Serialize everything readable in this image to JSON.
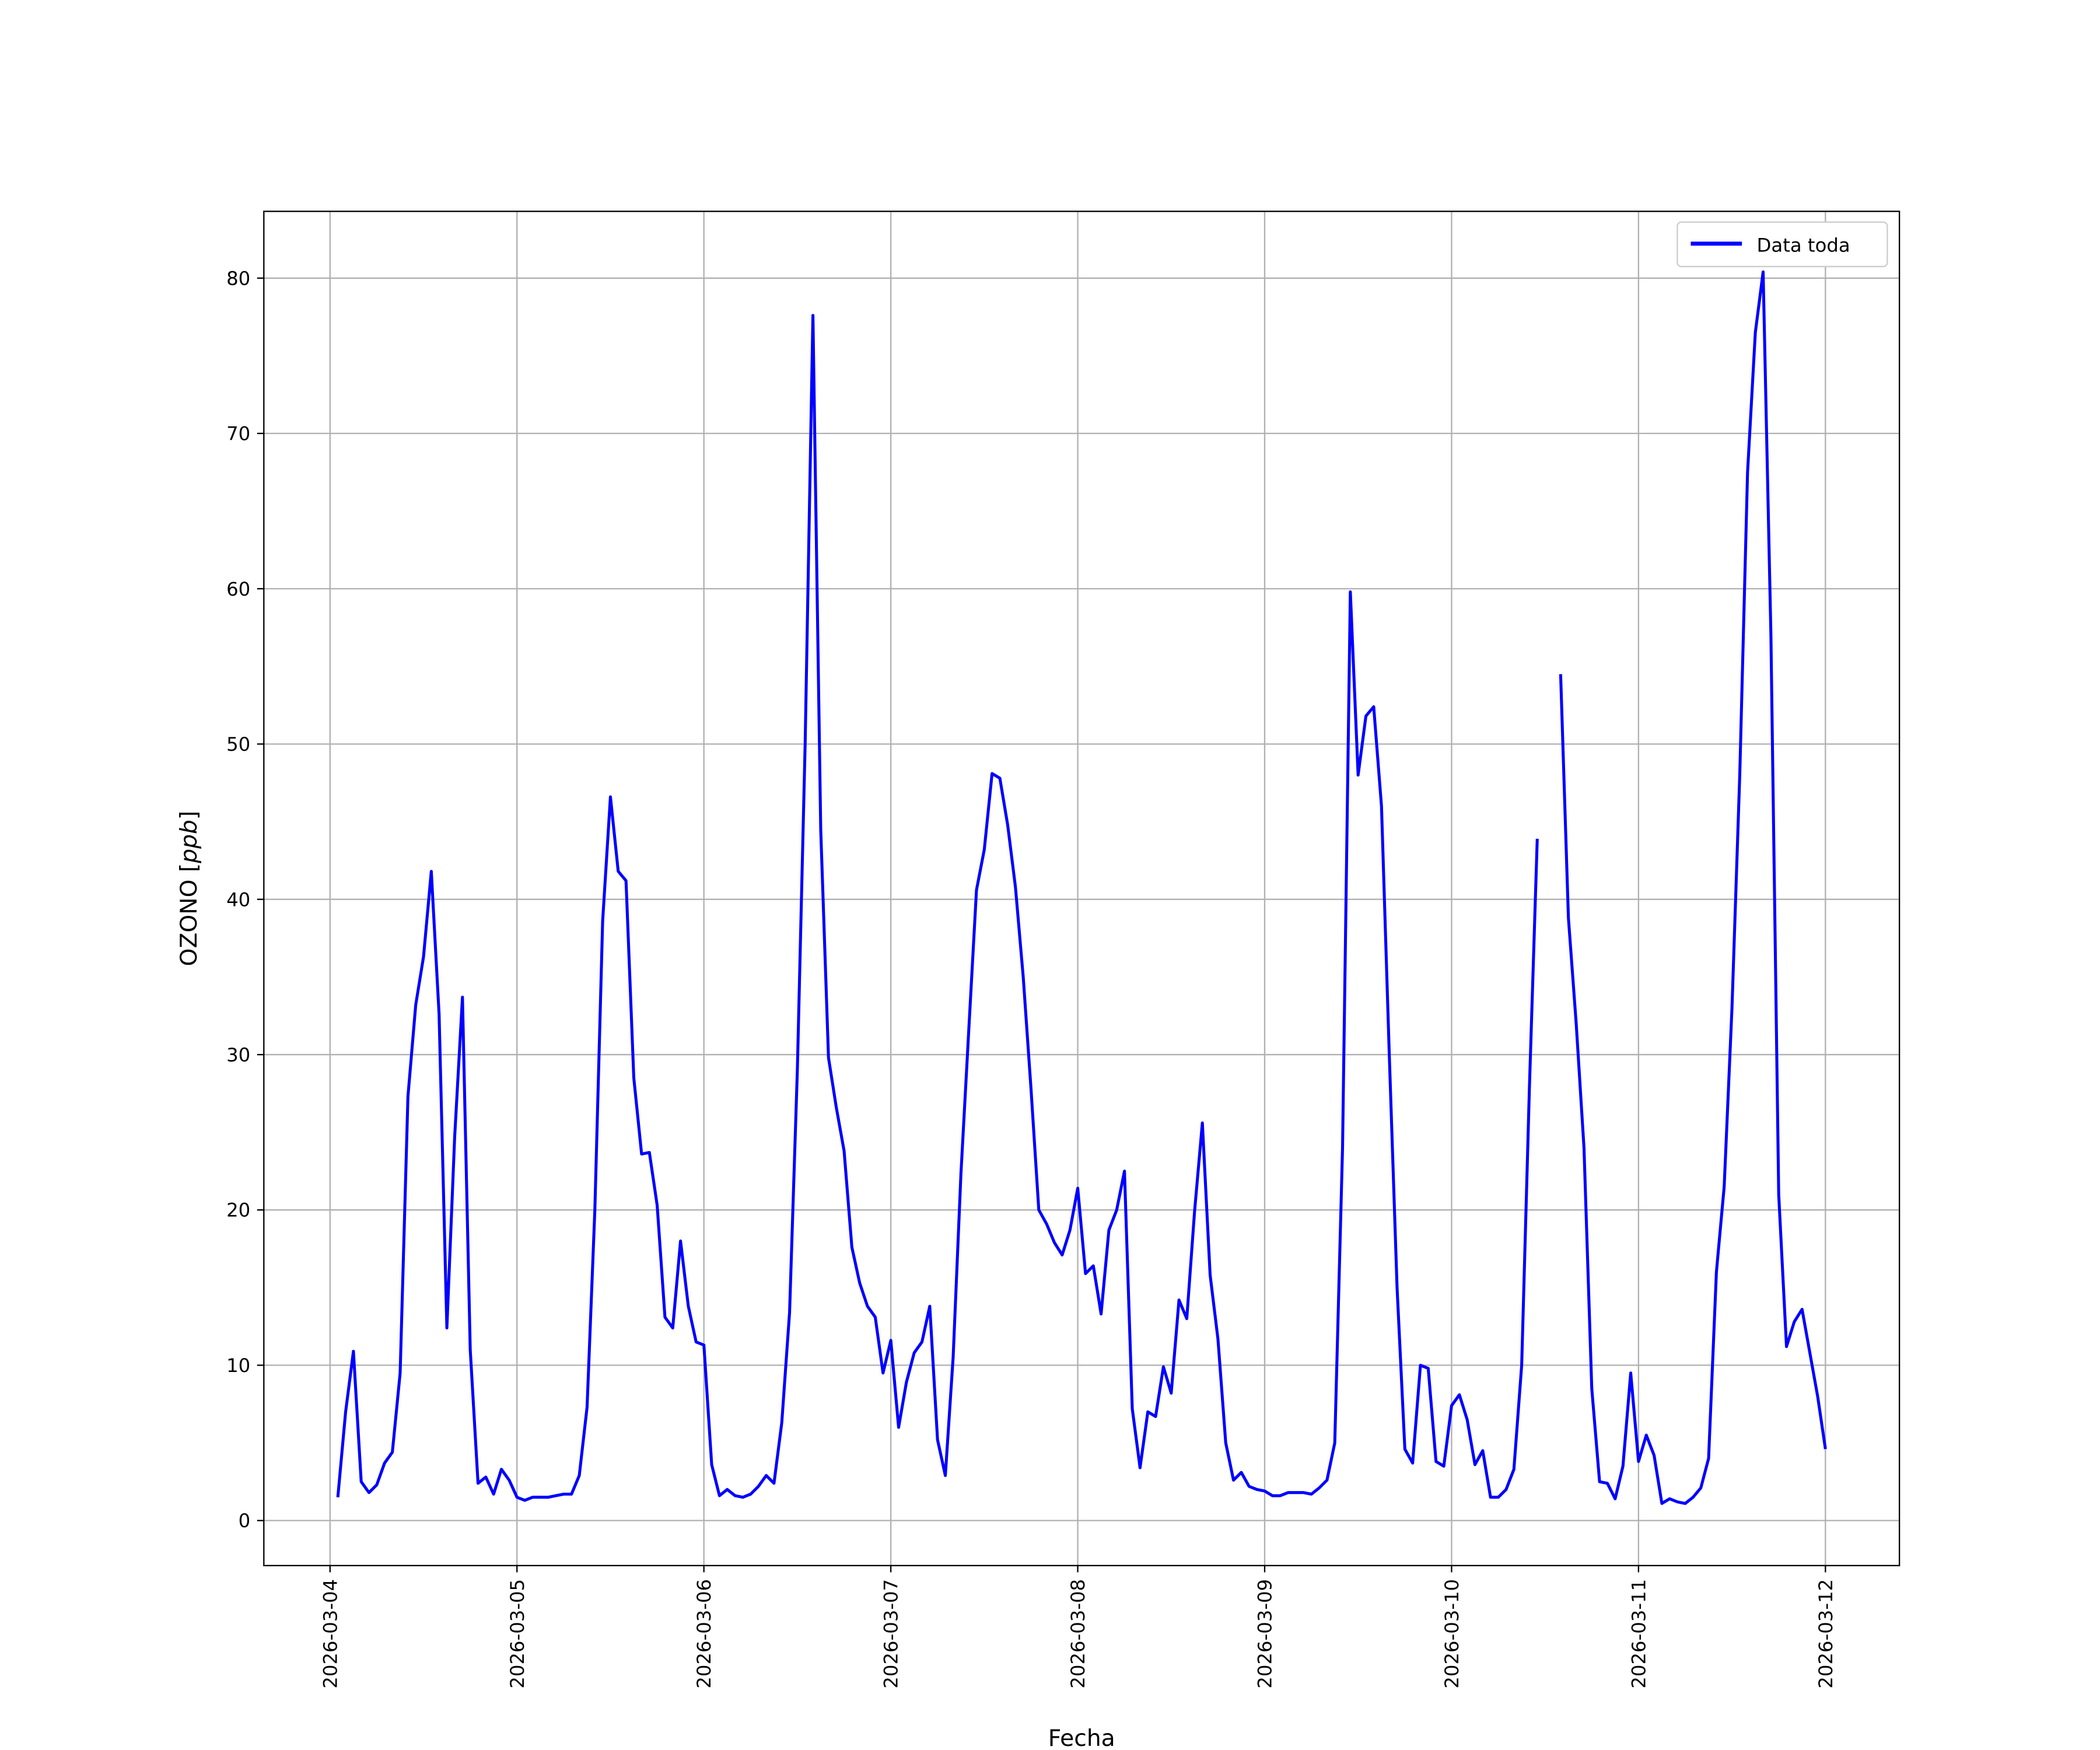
{
  "chart_data": {
    "type": "line",
    "title": "",
    "xlabel": "Fecha",
    "ylabel": "OZONO [ppb]",
    "ylabel_main": "OZONO",
    "ylabel_unit": "ppb",
    "xlim": [
      "2026-03-03 15:30",
      "2026-03-12 09:30"
    ],
    "ylim": [
      -2.9,
      84.3
    ],
    "grid": true,
    "legend": "top-right",
    "x_ticks": [
      "2026-03-04",
      "2026-03-05",
      "2026-03-06",
      "2026-03-07",
      "2026-03-08",
      "2026-03-09",
      "2026-03-10",
      "2026-03-11",
      "2026-03-12"
    ],
    "y_ticks": [
      0,
      10,
      20,
      30,
      40,
      50,
      60,
      70,
      80
    ],
    "series": [
      {
        "name": "Data toda",
        "color": "#0000ff",
        "points": [
          [
            "2026-03-04 01:00",
            1.5
          ],
          [
            "2026-03-04 02:00",
            7
          ],
          [
            "2026-03-04 03:00",
            10.9
          ],
          [
            "2026-03-04 04:00",
            2.5
          ],
          [
            "2026-03-04 05:00",
            1.8
          ],
          [
            "2026-03-04 06:00",
            2.3
          ],
          [
            "2026-03-04 07:00",
            3.7
          ],
          [
            "2026-03-04 08:00",
            4.4
          ],
          [
            "2026-03-04 09:00",
            9.5
          ],
          [
            "2026-03-04 10:00",
            27.3
          ],
          [
            "2026-03-04 11:00",
            33.2
          ],
          [
            "2026-03-04 12:00",
            36.3
          ],
          [
            "2026-03-04 13:00",
            41.8
          ],
          [
            "2026-03-04 14:00",
            32.6
          ],
          [
            "2026-03-04 15:00",
            12.4
          ],
          [
            "2026-03-04 16:00",
            24.7
          ],
          [
            "2026-03-04 17:00",
            33.7
          ],
          [
            "2026-03-04 18:00",
            11
          ],
          [
            "2026-03-04 19:00",
            2.4
          ],
          [
            "2026-03-04 20:00",
            2.8
          ],
          [
            "2026-03-04 21:00",
            1.7
          ],
          [
            "2026-03-04 22:00",
            3.3
          ],
          [
            "2026-03-04 23:00",
            2.6
          ],
          [
            "2026-03-05 00:00",
            1.5
          ],
          [
            "2026-03-05 01:00",
            1.3
          ],
          [
            "2026-03-05 02:00",
            1.5
          ],
          [
            "2026-03-05 03:00",
            1.5
          ],
          [
            "2026-03-05 04:00",
            1.5
          ],
          [
            "2026-03-05 05:00",
            1.6
          ],
          [
            "2026-03-05 06:00",
            1.7
          ],
          [
            "2026-03-05 07:00",
            1.7
          ],
          [
            "2026-03-05 08:00",
            2.9
          ],
          [
            "2026-03-05 09:00",
            7.3
          ],
          [
            "2026-03-05 10:00",
            20
          ],
          [
            "2026-03-05 11:00",
            38.6
          ],
          [
            "2026-03-05 12:00",
            46.6
          ],
          [
            "2026-03-05 13:00",
            41.8
          ],
          [
            "2026-03-05 14:00",
            41.2
          ],
          [
            "2026-03-05 15:00",
            28.5
          ],
          [
            "2026-03-05 16:00",
            23.6
          ],
          [
            "2026-03-05 17:00",
            23.7
          ],
          [
            "2026-03-05 18:00",
            20.3
          ],
          [
            "2026-03-05 19:00",
            13.1
          ],
          [
            "2026-03-05 20:00",
            12.4
          ],
          [
            "2026-03-05 21:00",
            18
          ],
          [
            "2026-03-05 22:00",
            13.8
          ],
          [
            "2026-03-05 23:00",
            11.5
          ],
          [
            "2026-03-06 00:00",
            11.3
          ],
          [
            "2026-03-06 01:00",
            3.6
          ],
          [
            "2026-03-06 02:00",
            1.6
          ],
          [
            "2026-03-06 03:00",
            2
          ],
          [
            "2026-03-06 04:00",
            1.6
          ],
          [
            "2026-03-06 05:00",
            1.5
          ],
          [
            "2026-03-06 06:00",
            1.7
          ],
          [
            "2026-03-06 07:00",
            2.2
          ],
          [
            "2026-03-06 08:00",
            2.9
          ],
          [
            "2026-03-06 09:00",
            2.4
          ],
          [
            "2026-03-06 10:00",
            6.3
          ],
          [
            "2026-03-06 11:00",
            13.4
          ],
          [
            "2026-03-06 12:00",
            29
          ],
          [
            "2026-03-06 13:00",
            50
          ],
          [
            "2026-03-06 14:00",
            77.6
          ],
          [
            "2026-03-06 15:00",
            44.5
          ],
          [
            "2026-03-06 16:00",
            29.8
          ],
          [
            "2026-03-06 17:00",
            26.6
          ],
          [
            "2026-03-06 18:00",
            23.8
          ],
          [
            "2026-03-06 19:00",
            17.6
          ],
          [
            "2026-03-06 20:00",
            15.3
          ],
          [
            "2026-03-06 21:00",
            13.8
          ],
          [
            "2026-03-06 22:00",
            13.1
          ],
          [
            "2026-03-06 23:00",
            9.5
          ],
          [
            "2026-03-07 00:00",
            11.6
          ],
          [
            "2026-03-07 01:00",
            6
          ],
          [
            "2026-03-07 02:00",
            8.9
          ],
          [
            "2026-03-07 03:00",
            10.8
          ],
          [
            "2026-03-07 04:00",
            11.5
          ],
          [
            "2026-03-07 05:00",
            13.8
          ],
          [
            "2026-03-07 06:00",
            5.2
          ],
          [
            "2026-03-07 07:00",
            2.9
          ],
          [
            "2026-03-07 08:00",
            10.5
          ],
          [
            "2026-03-07 09:00",
            22.3
          ],
          [
            "2026-03-07 10:00",
            31.5
          ],
          [
            "2026-03-07 11:00",
            40.6
          ],
          [
            "2026-03-07 12:00",
            43.2
          ],
          [
            "2026-03-07 13:00",
            48.1
          ],
          [
            "2026-03-07 14:00",
            47.8
          ],
          [
            "2026-03-07 15:00",
            44.8
          ],
          [
            "2026-03-07 16:00",
            40.8
          ],
          [
            "2026-03-07 17:00",
            35
          ],
          [
            "2026-03-07 18:00",
            27.8
          ],
          [
            "2026-03-07 19:00",
            20
          ],
          [
            "2026-03-07 20:00",
            19.1
          ],
          [
            "2026-03-07 21:00",
            17.9
          ],
          [
            "2026-03-07 22:00",
            17.1
          ],
          [
            "2026-03-07 23:00",
            18.7
          ],
          [
            "2026-03-08 00:00",
            21.4
          ],
          [
            "2026-03-08 01:00",
            15.9
          ],
          [
            "2026-03-08 02:00",
            16.4
          ],
          [
            "2026-03-08 03:00",
            13.3
          ],
          [
            "2026-03-08 04:00",
            18.7
          ],
          [
            "2026-03-08 05:00",
            20
          ],
          [
            "2026-03-08 06:00",
            22.5
          ],
          [
            "2026-03-08 07:00",
            7.2
          ],
          [
            "2026-03-08 08:00",
            3.4
          ],
          [
            "2026-03-08 09:00",
            7
          ],
          [
            "2026-03-08 10:00",
            6.7
          ],
          [
            "2026-03-08 11:00",
            9.9
          ],
          [
            "2026-03-08 12:00",
            8.2
          ],
          [
            "2026-03-08 13:00",
            14.2
          ],
          [
            "2026-03-08 14:00",
            13
          ],
          [
            "2026-03-08 15:00",
            19.9
          ],
          [
            "2026-03-08 16:00",
            25.6
          ],
          [
            "2026-03-08 17:00",
            15.8
          ],
          [
            "2026-03-08 18:00",
            11.7
          ],
          [
            "2026-03-08 19:00",
            5
          ],
          [
            "2026-03-08 20:00",
            2.6
          ],
          [
            "2026-03-08 21:00",
            3.1
          ],
          [
            "2026-03-08 22:00",
            2.2
          ],
          [
            "2026-03-08 23:00",
            2
          ],
          [
            "2026-03-09 00:00",
            1.9
          ],
          [
            "2026-03-09 01:00",
            1.6
          ],
          [
            "2026-03-09 02:00",
            1.6
          ],
          [
            "2026-03-09 03:00",
            1.8
          ],
          [
            "2026-03-09 04:00",
            1.8
          ],
          [
            "2026-03-09 05:00",
            1.8
          ],
          [
            "2026-03-09 06:00",
            1.7
          ],
          [
            "2026-03-09 07:00",
            2.1
          ],
          [
            "2026-03-09 08:00",
            2.6
          ],
          [
            "2026-03-09 09:00",
            5
          ],
          [
            "2026-03-09 10:00",
            24
          ],
          [
            "2026-03-09 11:00",
            59.8
          ],
          [
            "2026-03-09 12:00",
            48
          ],
          [
            "2026-03-09 13:00",
            51.8
          ],
          [
            "2026-03-09 14:00",
            52.4
          ],
          [
            "2026-03-09 15:00",
            46
          ],
          [
            "2026-03-09 16:00",
            30
          ],
          [
            "2026-03-09 17:00",
            15
          ],
          [
            "2026-03-09 18:00",
            4.6
          ],
          [
            "2026-03-09 19:00",
            3.7
          ],
          [
            "2026-03-09 20:00",
            10
          ],
          [
            "2026-03-09 21:00",
            9.8
          ],
          [
            "2026-03-09 22:00",
            3.8
          ],
          [
            "2026-03-09 23:00",
            3.5
          ],
          [
            "2026-03-10 00:00",
            7.4
          ],
          [
            "2026-03-10 01:00",
            8.1
          ],
          [
            "2026-03-10 02:00",
            6.5
          ],
          [
            "2026-03-10 03:00",
            3.6
          ],
          [
            "2026-03-10 04:00",
            4.5
          ],
          [
            "2026-03-10 05:00",
            1.5
          ],
          [
            "2026-03-10 06:00",
            1.5
          ],
          [
            "2026-03-10 07:00",
            2
          ],
          [
            "2026-03-10 08:00",
            3.3
          ],
          [
            "2026-03-10 09:00",
            10
          ],
          [
            "2026-03-10 10:00",
            28
          ],
          [
            "2026-03-10 11:00",
            43.9
          ],
          [
            "2026-03-10 12:00",
            null
          ],
          [
            "2026-03-10 13:00",
            null
          ],
          [
            "2026-03-10 14:00",
            54.5
          ],
          [
            "2026-03-10 15:00",
            38.8
          ],
          [
            "2026-03-10 16:00",
            32
          ],
          [
            "2026-03-10 17:00",
            24
          ],
          [
            "2026-03-10 18:00",
            8.5
          ],
          [
            "2026-03-10 19:00",
            2.5
          ],
          [
            "2026-03-10 20:00",
            2.4
          ],
          [
            "2026-03-10 21:00",
            1.4
          ],
          [
            "2026-03-10 22:00",
            3.5
          ],
          [
            "2026-03-10 23:00",
            9.5
          ],
          [
            "2026-03-11 00:00",
            3.8
          ],
          [
            "2026-03-11 01:00",
            5.5
          ],
          [
            "2026-03-11 02:00",
            4.2
          ],
          [
            "2026-03-11 03:00",
            1.1
          ],
          [
            "2026-03-11 04:00",
            1.4
          ],
          [
            "2026-03-11 05:00",
            1.2
          ],
          [
            "2026-03-11 06:00",
            1.1
          ],
          [
            "2026-03-11 07:00",
            1.5
          ],
          [
            "2026-03-11 08:00",
            2.1
          ],
          [
            "2026-03-11 09:00",
            4
          ],
          [
            "2026-03-11 10:00",
            16
          ],
          [
            "2026-03-11 11:00",
            21.5
          ],
          [
            "2026-03-11 12:00",
            33
          ],
          [
            "2026-03-11 13:00",
            48
          ],
          [
            "2026-03-11 14:00",
            67.5
          ],
          [
            "2026-03-11 15:00",
            76.5
          ],
          [
            "2026-03-11 16:00",
            80.4
          ],
          [
            "2026-03-11 17:00",
            57
          ],
          [
            "2026-03-11 18:00",
            21
          ],
          [
            "2026-03-11 19:00",
            11.2
          ],
          [
            "2026-03-11 20:00",
            12.8
          ],
          [
            "2026-03-11 21:00",
            13.6
          ],
          [
            "2026-03-11 22:00",
            10.8
          ],
          [
            "2026-03-11 23:00",
            8
          ],
          [
            "2026-03-12 00:00",
            4.6
          ]
        ]
      }
    ]
  }
}
